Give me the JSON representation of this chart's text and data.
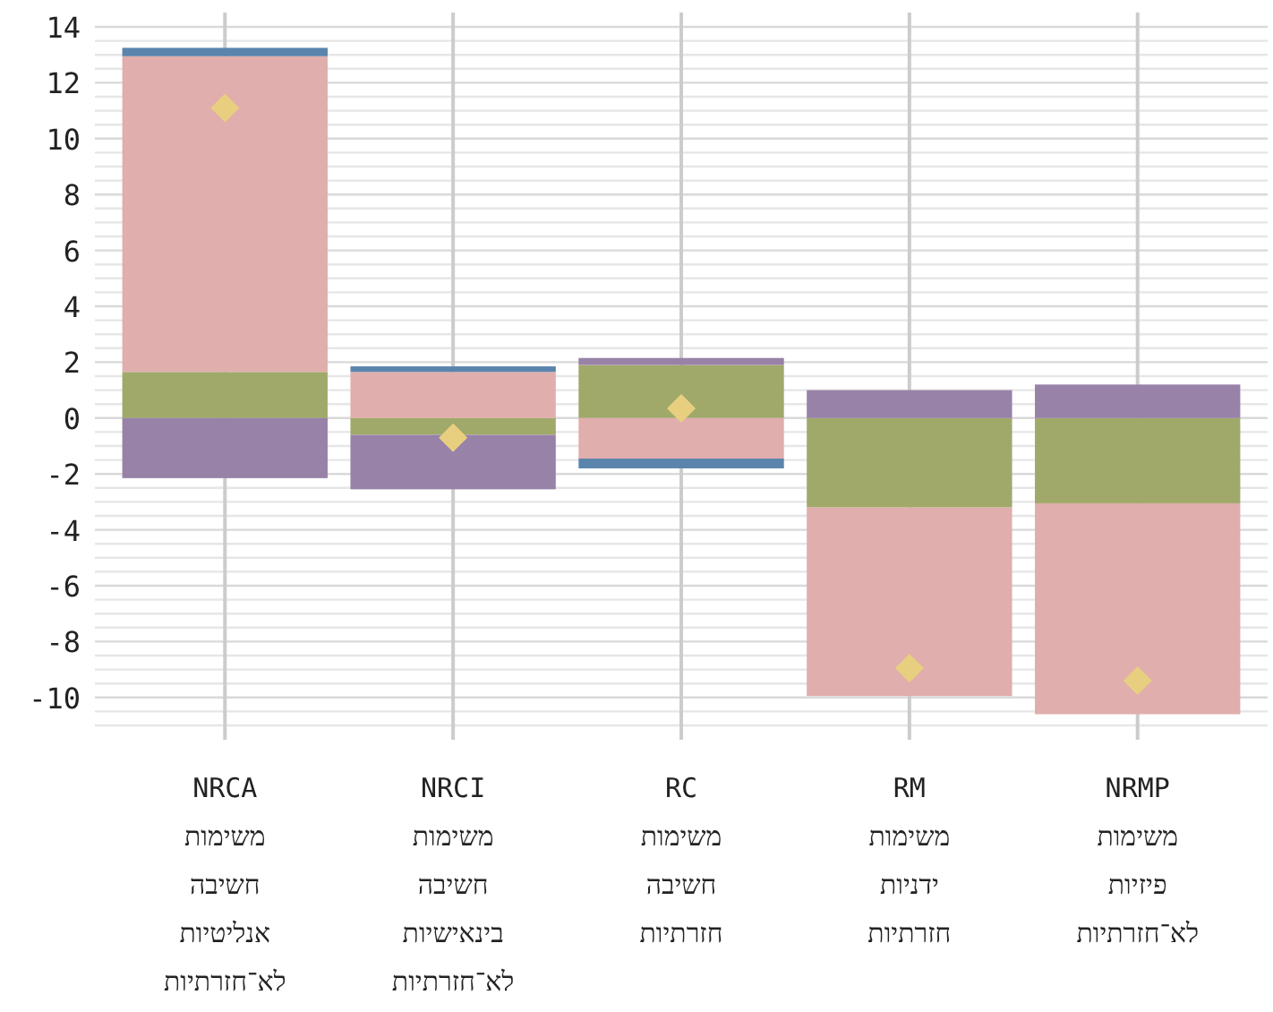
{
  "chart_data": {
    "type": "bar",
    "stacked": true,
    "grid": true,
    "categories": [
      "NRCA\nמשימות\nחשיבה\nאנליטיות\nלא־חזרתיות",
      "NRCI\nמשימות\nחשיבה\nבינאישיות\nלא־חזרתיות",
      "RC\nמשימות\nחשיבה\nחזרתיות",
      "RM\nמשימות\nידניות\nחזרתיות",
      "NRMP\nמשימות\nפיזיות\nלא־חזרתיות"
    ],
    "ylim": [
      -11,
      14
    ],
    "yticks": [
      {
        "value": -11,
        "label": null
      },
      {
        "value": -10.5,
        "label": null
      },
      -10,
      {
        "value": -9.5,
        "label": null
      },
      {
        "value": -9,
        "label": null
      },
      {
        "value": -8.5,
        "label": null
      },
      -8,
      {
        "value": -7.5,
        "label": null
      },
      {
        "value": -7,
        "label": null
      },
      {
        "value": -6.5,
        "label": null
      },
      -6,
      {
        "value": -5.5,
        "label": null
      },
      {
        "value": -5,
        "label": null
      },
      {
        "value": -4.5,
        "label": null
      },
      -4,
      {
        "value": -3.5,
        "label": null
      },
      {
        "value": -3,
        "label": null
      },
      {
        "value": -2.5,
        "label": null
      },
      -2,
      {
        "value": -1.5,
        "label": null
      },
      {
        "value": -1,
        "label": null
      },
      {
        "value": -0.5,
        "label": null
      },
      0,
      {
        "value": 0.5,
        "label": null
      },
      {
        "value": 1,
        "label": null
      },
      {
        "value": 1.5,
        "label": null
      },
      2,
      {
        "value": 2.5,
        "label": null
      },
      {
        "value": 3,
        "label": null
      },
      {
        "value": 3.5,
        "label": null
      },
      4,
      {
        "value": 4.5,
        "label": null
      },
      {
        "value": 5,
        "label": null
      },
      {
        "value": 5.5,
        "label": null
      },
      6,
      {
        "value": 6.5,
        "label": null
      },
      {
        "value": 7,
        "label": null
      },
      {
        "value": 7.5,
        "label": null
      },
      8,
      {
        "value": 8.5,
        "label": null
      },
      {
        "value": 9,
        "label": null
      },
      {
        "value": 9.5,
        "label": null
      },
      10,
      {
        "value": 10.5,
        "label": null
      },
      {
        "value": 11,
        "label": null
      },
      {
        "value": 11.5,
        "label": null
      },
      12,
      {
        "value": 12.5,
        "label": null
      },
      {
        "value": 13,
        "label": null
      },
      {
        "value": 13.5,
        "label": null
      },
      14
    ],
    "series": [
      {
        "color": "#a0a96a",
        "values": [
          1.65,
          -0.6,
          1.9,
          -3.2,
          -3.05
        ]
      },
      {
        "color": "#e0aeac",
        "values": [
          11.3,
          1.65,
          -1.45,
          -6.75,
          -7.55
        ]
      },
      {
        "color": "#5b84ad",
        "values": [
          0.3,
          0.2,
          -0.35,
          null,
          null
        ]
      },
      {
        "color": "#9882a8",
        "values": [
          -2.15,
          -1.95,
          0.25,
          1.0,
          1.2
        ]
      },
      {
        "type": "scatter",
        "marker": "diamond",
        "color": "#e8cf80",
        "x": [
          "NRCA\nמשימות\nחשיבה\nאנליטיות\nלא־חזרתיות",
          "NRCI\nמשימות\nחשיבה\nבינאישיות\nלא־חזרתיות",
          "RC\nמשימות\nחשיבה\nחזרתיות",
          "RM\nמשימות\nידניות\nחזרתיות",
          "NRMP\nמשימות\nפיזיות\nלא־חזרתיות"
        ],
        "values": [
          11.1,
          -0.7,
          0.35,
          -8.95,
          -9.4
        ]
      }
    ]
  }
}
